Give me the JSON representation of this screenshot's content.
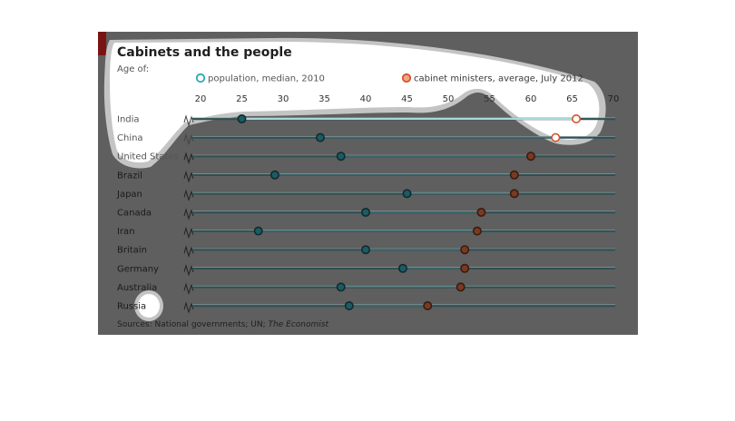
{
  "chart_data": {
    "type": "dot-plot",
    "title": "Cabinets and the people",
    "subtitle": "Age of:",
    "legend": [
      {
        "name": "population, median, 2010",
        "color": "#2aa6b5"
      },
      {
        "name": "cabinet ministers, average, July 2012",
        "color": "#d4542a"
      }
    ],
    "x_ticks": [
      20,
      25,
      30,
      35,
      40,
      45,
      50,
      55,
      60,
      65,
      70
    ],
    "xlim": [
      20,
      70
    ],
    "categories": [
      "India",
      "China",
      "United States",
      "Brazil",
      "Japan",
      "Canada",
      "Iran",
      "Britain",
      "Germany",
      "Australia",
      "Russia"
    ],
    "series": [
      {
        "name": "population, median, 2010",
        "values": [
          25,
          34.5,
          37,
          29,
          45,
          40,
          27,
          40,
          44.5,
          37,
          38
        ]
      },
      {
        "name": "cabinet ministers, average, July 2012",
        "values": [
          65.5,
          63,
          60,
          58,
          58,
          54,
          53.5,
          52,
          52,
          51.5,
          47.5
        ]
      }
    ],
    "source": "Sources: National governments; UN; ",
    "source_italic": "The Economist"
  },
  "colors": {
    "background": "#5f5f5f",
    "highlight": "#ffffff",
    "highlight_edge": "#c4c4c4",
    "accent_bar": "#7a1414",
    "population_dot": "#2aa6b5",
    "cabinet_dot": "#d4542a"
  }
}
